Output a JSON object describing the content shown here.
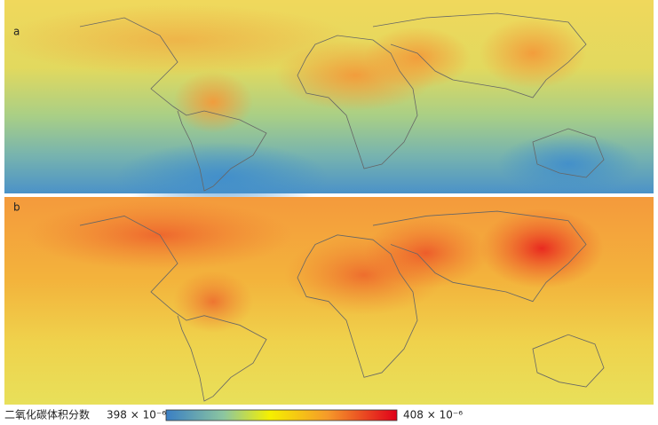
{
  "panels": [
    {
      "label": "a"
    },
    {
      "label": "b"
    }
  ],
  "colorbar": {
    "label": "二氧化碳体积分数",
    "min_label": "398 × 10⁻⁶",
    "max_label": "408 × 10⁻⁶"
  }
}
